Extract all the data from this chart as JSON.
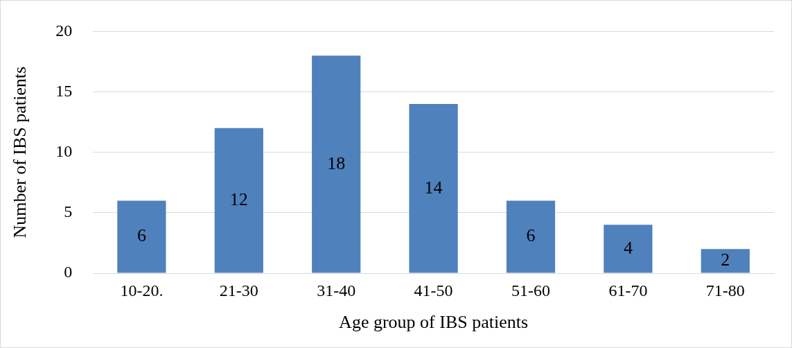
{
  "chart_data": {
    "type": "bar",
    "xlabel": "Age group of IBS patients",
    "ylabel": "Number of IBS patients",
    "categories": [
      "10-20.",
      "21-30",
      "31-40",
      "41-50",
      "51-60",
      "61-70",
      "71-80"
    ],
    "values": [
      6,
      12,
      18,
      14,
      6,
      4,
      2
    ],
    "color": "#4f81bd",
    "ylim": [
      0,
      20
    ],
    "yticks": [
      0,
      5,
      10,
      15,
      20
    ],
    "grid": "y",
    "data_labels": true
  }
}
